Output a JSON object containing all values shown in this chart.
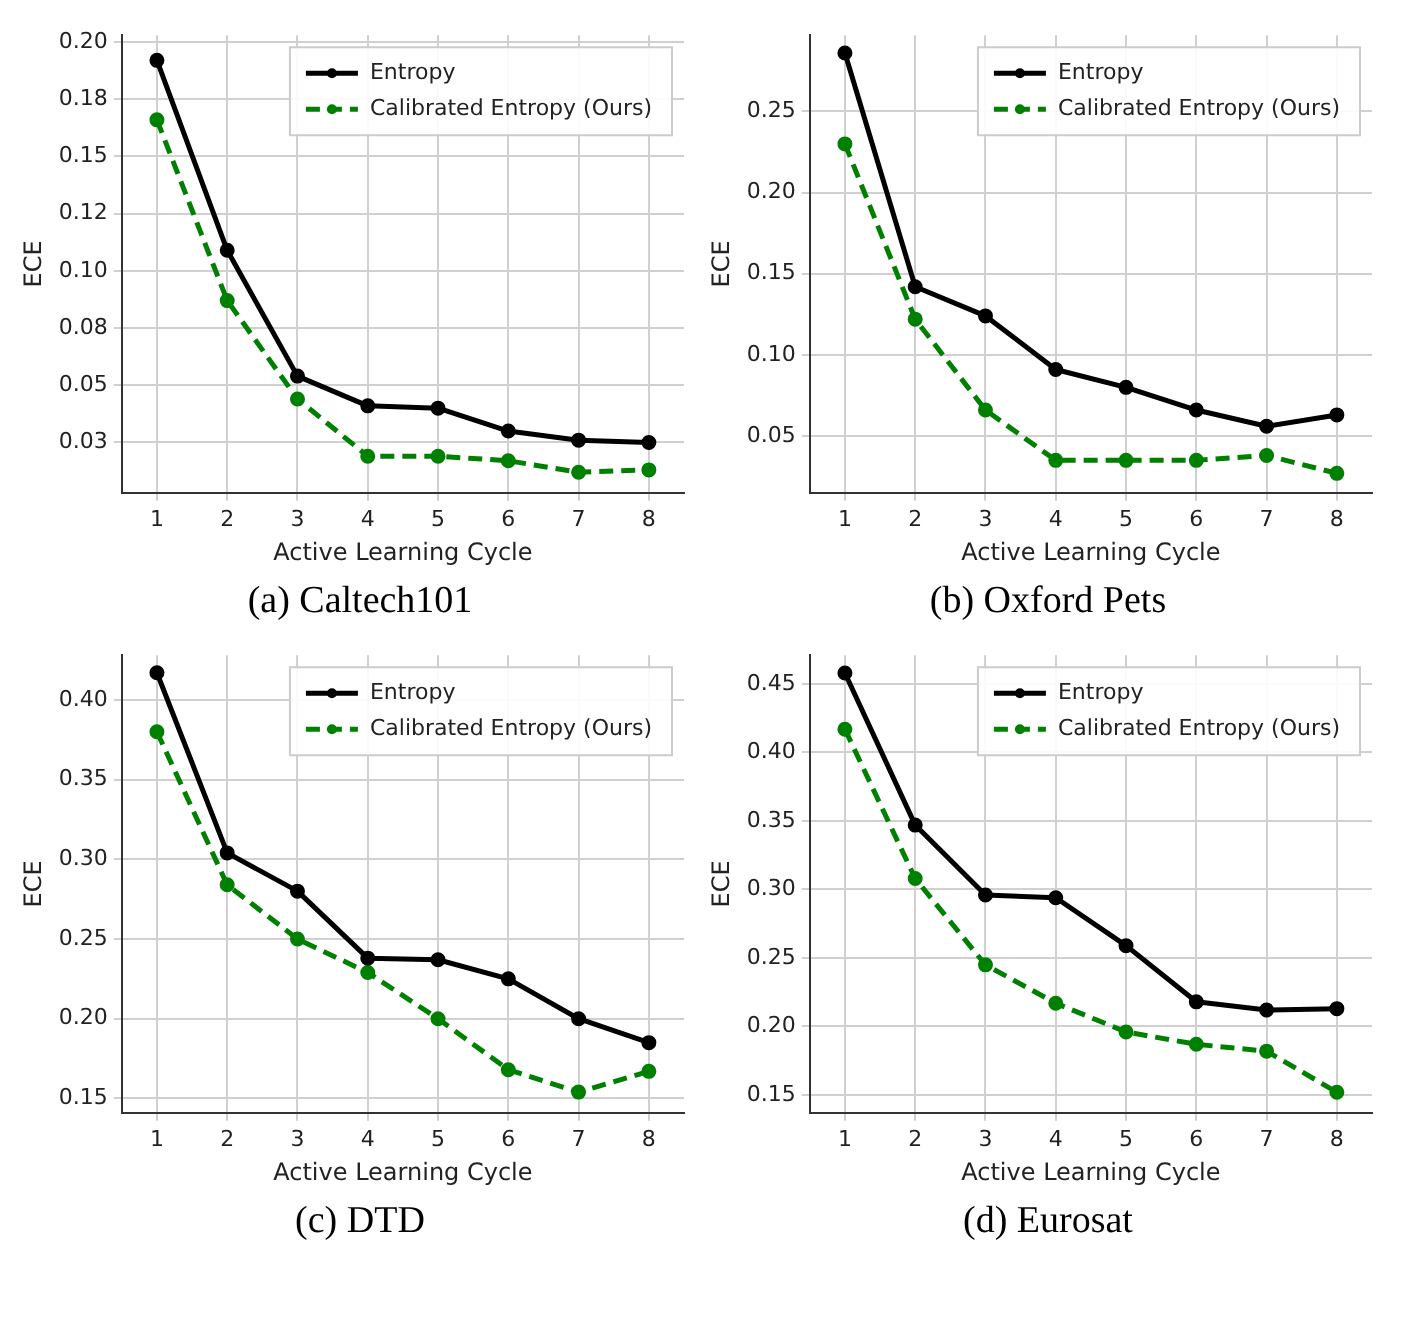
{
  "chart_data": [
    {
      "type": "line",
      "xlabel": "Active Learning Cycle",
      "ylabel": "ECE",
      "annotations": [
        "(a) Caltech101"
      ],
      "categories": [
        "1",
        "2",
        "3",
        "4",
        "5",
        "6",
        "7",
        "8"
      ],
      "ylim": [
        0.003,
        0.203
      ],
      "yticks": [
        {
          "value": 0.025,
          "label": "0.03"
        },
        {
          "value": 0.05,
          "label": "0.05"
        },
        {
          "value": 0.075,
          "label": "0.08"
        },
        {
          "value": 0.1,
          "label": "0.10"
        },
        {
          "value": 0.125,
          "label": "0.12"
        },
        {
          "value": 0.15,
          "label": "0.15"
        },
        {
          "value": 0.175,
          "label": "0.18"
        },
        {
          "value": 0.2,
          "label": "0.20"
        }
      ],
      "grid": true,
      "legend": "top right",
      "marker": "circle",
      "series": [
        {
          "name": "Entropy",
          "color": "#000000",
          "line_style": "solid",
          "values": [
            0.192,
            0.109,
            0.054,
            0.041,
            0.04,
            0.03,
            0.026,
            0.025
          ]
        },
        {
          "name": "Calibrated Entropy (Ours)",
          "color": "#008000",
          "line_style": "dashed",
          "values": [
            0.166,
            0.087,
            0.044,
            0.019,
            0.019,
            0.017,
            0.012,
            0.013
          ]
        }
      ]
    },
    {
      "type": "line",
      "xlabel": "Active Learning Cycle",
      "ylabel": "ECE",
      "annotations": [
        "(b) Oxford Pets"
      ],
      "categories": [
        "1",
        "2",
        "3",
        "4",
        "5",
        "6",
        "7",
        "8"
      ],
      "ylim": [
        0.015,
        0.297
      ],
      "yticks": [
        {
          "value": 0.05,
          "label": "0.05"
        },
        {
          "value": 0.1,
          "label": "0.10"
        },
        {
          "value": 0.15,
          "label": "0.15"
        },
        {
          "value": 0.2,
          "label": "0.20"
        },
        {
          "value": 0.25,
          "label": "0.25"
        }
      ],
      "grid": true,
      "legend": "top right",
      "marker": "circle",
      "series": [
        {
          "name": "Entropy",
          "color": "#000000",
          "line_style": "solid",
          "values": [
            0.286,
            0.142,
            0.124,
            0.091,
            0.08,
            0.066,
            0.056,
            0.063
          ]
        },
        {
          "name": "Calibrated Entropy (Ours)",
          "color": "#008000",
          "line_style": "dashed",
          "values": [
            0.23,
            0.122,
            0.066,
            0.035,
            0.035,
            0.035,
            0.038,
            0.027
          ]
        }
      ]
    },
    {
      "type": "line",
      "xlabel": "Active Learning Cycle",
      "ylabel": "ECE",
      "annotations": [
        "(c) DTD"
      ],
      "categories": [
        "1",
        "2",
        "3",
        "4",
        "5",
        "6",
        "7",
        "8"
      ],
      "ylim": [
        0.141,
        0.428
      ],
      "yticks": [
        {
          "value": 0.15,
          "label": "0.15"
        },
        {
          "value": 0.2,
          "label": "0.20"
        },
        {
          "value": 0.25,
          "label": "0.25"
        },
        {
          "value": 0.3,
          "label": "0.30"
        },
        {
          "value": 0.35,
          "label": "0.35"
        },
        {
          "value": 0.4,
          "label": "0.40"
        }
      ],
      "grid": true,
      "legend": "top right",
      "marker": "circle",
      "series": [
        {
          "name": "Entropy",
          "color": "#000000",
          "line_style": "solid",
          "values": [
            0.417,
            0.304,
            0.28,
            0.238,
            0.237,
            0.225,
            0.2,
            0.185
          ]
        },
        {
          "name": "Calibrated Entropy (Ours)",
          "color": "#008000",
          "line_style": "dashed",
          "values": [
            0.38,
            0.284,
            0.25,
            0.229,
            0.2,
            0.168,
            0.154,
            0.167
          ]
        }
      ]
    },
    {
      "type": "line",
      "xlabel": "Active Learning Cycle",
      "ylabel": "ECE",
      "annotations": [
        "(d) Eurosat"
      ],
      "categories": [
        "1",
        "2",
        "3",
        "4",
        "5",
        "6",
        "7",
        "8"
      ],
      "ylim": [
        0.137,
        0.471
      ],
      "yticks": [
        {
          "value": 0.15,
          "label": "0.15"
        },
        {
          "value": 0.2,
          "label": "0.20"
        },
        {
          "value": 0.25,
          "label": "0.25"
        },
        {
          "value": 0.3,
          "label": "0.30"
        },
        {
          "value": 0.35,
          "label": "0.35"
        },
        {
          "value": 0.4,
          "label": "0.40"
        },
        {
          "value": 0.45,
          "label": "0.45"
        }
      ],
      "grid": true,
      "legend": "top right",
      "marker": "circle",
      "series": [
        {
          "name": "Entropy",
          "color": "#000000",
          "line_style": "solid",
          "values": [
            0.458,
            0.347,
            0.296,
            0.294,
            0.259,
            0.218,
            0.212,
            0.213
          ]
        },
        {
          "name": "Calibrated Entropy (Ours)",
          "color": "#008000",
          "line_style": "dashed",
          "values": [
            0.417,
            0.308,
            0.245,
            0.217,
            0.196,
            0.187,
            0.182,
            0.152
          ]
        }
      ]
    }
  ]
}
